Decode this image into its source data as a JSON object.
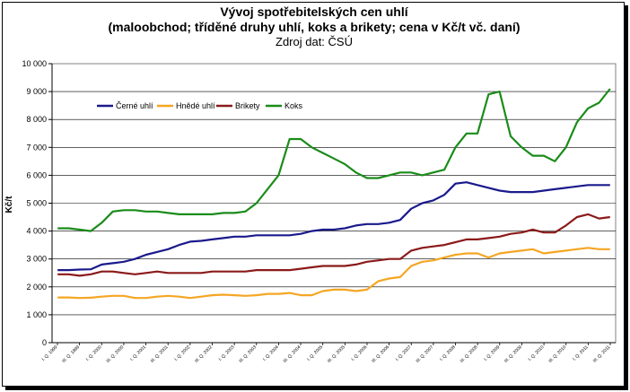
{
  "chart_data": {
    "type": "line",
    "title_line1": "Vývoj spotřebitelských cen uhlí",
    "title_line2": "(maloobchod; tříděné druhy uhlí, koks a brikety; cena v Kč/t vč. daní)",
    "subtitle": "Zdroj dat: ČSÚ",
    "ylabel": "Kč/t",
    "xlabel": "",
    "ylim": [
      0,
      10000
    ],
    "yticks": [
      0,
      1000,
      2000,
      3000,
      4000,
      5000,
      6000,
      7000,
      8000,
      9000,
      10000
    ],
    "ytick_labels": [
      "0",
      "1 000",
      "2 000",
      "3 000",
      "4 000",
      "5 000",
      "6 000",
      "7 000",
      "8 000",
      "9 000",
      "10 000"
    ],
    "grid": "horizontal",
    "legend_position": "top-left",
    "x_labels": [
      "I. Q. 1999",
      "III. Q. 1999",
      "I. Q. 2000",
      "III. Q. 2000",
      "I. Q. 2001",
      "III. Q. 2001",
      "I. Q. 2002",
      "III. Q. 2002",
      "I. Q. 2003",
      "III. Q. 2003",
      "I. Q. 2004",
      "III. Q. 2004",
      "I. Q. 2005",
      "III. Q. 2005",
      "I. Q. 2006",
      "III. Q. 2006",
      "I. Q. 2007",
      "III. Q. 2007",
      "I. Q. 2008",
      "III. Q. 2008",
      "I. Q. 2009",
      "III. Q. 2009",
      "I. Q. 2010",
      "III. Q. 2010",
      "I. Q. 2011",
      "III. Q. 2011"
    ],
    "series": [
      {
        "name": "Černé uhlí",
        "color": "#1a1a8c",
        "values": [
          2600,
          2600,
          2620,
          2630,
          2800,
          2850,
          2900,
          3000,
          3150,
          3250,
          3350,
          3500,
          3620,
          3650,
          3700,
          3750,
          3800,
          3800,
          3850,
          3850,
          3850,
          3850,
          3900,
          4000,
          4050,
          4050,
          4100,
          4200,
          4250,
          4250,
          4300,
          4400,
          4800,
          5000,
          5100,
          5300,
          5700,
          5750,
          5650,
          5550,
          5450,
          5400,
          5400,
          5400,
          5450,
          5500,
          5550,
          5600,
          5650,
          5650,
          5650
        ]
      },
      {
        "name": "Hnědé uhlí",
        "color": "#f5a623",
        "values": [
          1620,
          1620,
          1600,
          1610,
          1650,
          1680,
          1680,
          1600,
          1600,
          1650,
          1680,
          1650,
          1600,
          1650,
          1700,
          1720,
          1700,
          1680,
          1700,
          1750,
          1750,
          1780,
          1700,
          1700,
          1850,
          1900,
          1900,
          1850,
          1900,
          2200,
          2300,
          2350,
          2750,
          2900,
          2950,
          3050,
          3150,
          3200,
          3200,
          3050,
          3200,
          3250,
          3300,
          3350,
          3200,
          3250,
          3300,
          3350,
          3400,
          3350,
          3350
        ]
      },
      {
        "name": "Brikety",
        "color": "#8b1a1a",
        "values": [
          2450,
          2450,
          2400,
          2450,
          2550,
          2550,
          2500,
          2450,
          2500,
          2550,
          2500,
          2500,
          2500,
          2500,
          2550,
          2550,
          2550,
          2550,
          2600,
          2600,
          2600,
          2600,
          2650,
          2700,
          2750,
          2750,
          2750,
          2800,
          2900,
          2950,
          3000,
          3000,
          3300,
          3400,
          3450,
          3500,
          3600,
          3700,
          3700,
          3750,
          3800,
          3900,
          3950,
          4050,
          3950,
          3950,
          4200,
          4500,
          4600,
          4450,
          4500
        ]
      },
      {
        "name": "Koks",
        "color": "#1a8c1a",
        "values": [
          4100,
          4100,
          4050,
          4000,
          4300,
          4700,
          4750,
          4750,
          4700,
          4700,
          4650,
          4600,
          4600,
          4600,
          4600,
          4650,
          4650,
          4700,
          5000,
          5500,
          6000,
          7300,
          7300,
          7000,
          6800,
          6600,
          6400,
          6100,
          5900,
          5900,
          6000,
          6100,
          6100,
          6000,
          6100,
          6200,
          7000,
          7500,
          7500,
          8900,
          9000,
          7400,
          7000,
          6700,
          6700,
          6500,
          7000,
          7900,
          8400,
          8600,
          9100
        ]
      }
    ]
  }
}
